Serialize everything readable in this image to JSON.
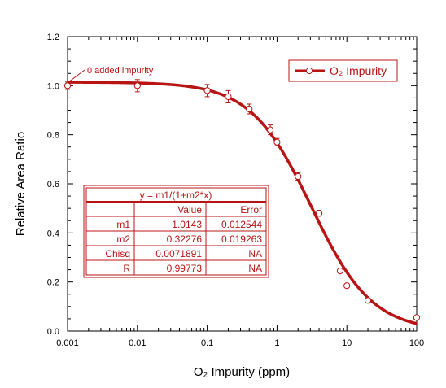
{
  "colors": {
    "series": "#b81414",
    "axis": "#000000",
    "background": "#ffffff"
  },
  "chart_data": {
    "type": "scatter",
    "title": "",
    "xlabel": "O₂ Impurity (ppm)",
    "ylabel": "Relative Area Ratio",
    "xscale": "log",
    "xlim": [
      0.001,
      100
    ],
    "ylim": [
      0,
      1.2
    ],
    "xticks": [
      "0.001",
      "0.01",
      "0.1",
      "1",
      "10",
      "100"
    ],
    "yticks": [
      "0.0",
      "0.2",
      "0.4",
      "0.6",
      "0.8",
      "1.0",
      "1.2"
    ],
    "grid": false,
    "legend": {
      "position": "top-right",
      "entries": [
        "O₂ Impurity"
      ]
    },
    "series": [
      {
        "name": "O₂ Impurity",
        "x": [
          0.001,
          0.01,
          0.1,
          0.2,
          0.4,
          0.8,
          1.0,
          2.0,
          4.0,
          8.0,
          10.0,
          20.0,
          100.0
        ],
        "y": [
          1.0,
          1.0,
          0.98,
          0.955,
          0.905,
          0.82,
          0.77,
          0.63,
          0.48,
          0.245,
          0.185,
          0.125,
          0.055
        ],
        "yerr": [
          0.015,
          0.025,
          0.025,
          0.025,
          0.02,
          0.02,
          0.015,
          0.015,
          0.012,
          0.005,
          0.005,
          0.005,
          0.005
        ]
      }
    ],
    "fit": {
      "equation": "y = m1/(1+m2*x)",
      "m1": 1.0143,
      "m2": 0.32276
    },
    "fit_table": {
      "title": "y = m1/(1+m2*x)",
      "headers": [
        "",
        "Value",
        "Error"
      ],
      "rows": [
        [
          "m1",
          "1.0143",
          "0.012544"
        ],
        [
          "m2",
          "0.32276",
          "0.019263"
        ],
        [
          "Chisq",
          "0.0071891",
          "NA"
        ],
        [
          "R",
          "0.99773",
          "NA"
        ]
      ]
    },
    "annotations": [
      {
        "text": "0 added impurity",
        "x": 0.001,
        "y": 1.0
      }
    ]
  }
}
